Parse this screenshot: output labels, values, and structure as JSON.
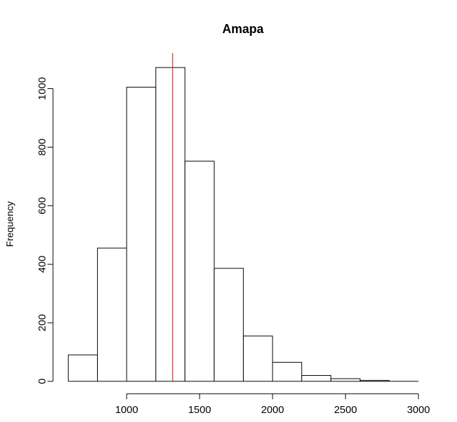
{
  "chart_data": {
    "type": "bar",
    "title": "Amapa",
    "xlabel": "",
    "ylabel": "Frequency",
    "bins": [
      {
        "start": 600,
        "end": 800,
        "count": 90
      },
      {
        "start": 800,
        "end": 1000,
        "count": 455
      },
      {
        "start": 1000,
        "end": 1200,
        "count": 1005
      },
      {
        "start": 1200,
        "end": 1400,
        "count": 1072
      },
      {
        "start": 1400,
        "end": 1600,
        "count": 752
      },
      {
        "start": 1600,
        "end": 1800,
        "count": 386
      },
      {
        "start": 1800,
        "end": 2000,
        "count": 155
      },
      {
        "start": 2000,
        "end": 2200,
        "count": 65
      },
      {
        "start": 2200,
        "end": 2400,
        "count": 20
      },
      {
        "start": 2400,
        "end": 2600,
        "count": 9
      },
      {
        "start": 2600,
        "end": 2800,
        "count": 3
      },
      {
        "start": 2800,
        "end": 3000,
        "count": 0
      }
    ],
    "xticks": [
      1000,
      1500,
      2000,
      2500,
      3000
    ],
    "yticks": [
      0,
      200,
      400,
      600,
      800,
      1000
    ],
    "xlim": [
      1000,
      3000
    ],
    "ylim": [
      0,
      1000
    ],
    "reference_line": {
      "x": 1315,
      "color": "#d62728"
    },
    "grid": false
  }
}
